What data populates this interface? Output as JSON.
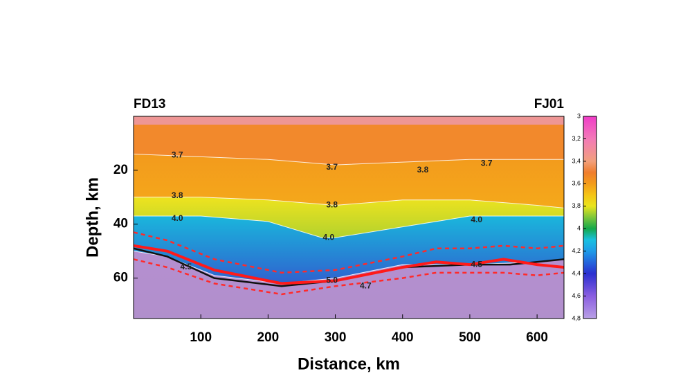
{
  "chart_data": {
    "type": "section",
    "left_label": "FD13",
    "right_label": "FJ01",
    "x_label": "Distance, km",
    "y_label": "Depth, km",
    "xlim": [
      0,
      640
    ],
    "ylim": [
      0,
      75
    ],
    "y_inverted": true,
    "xticks": [
      100,
      200,
      300,
      400,
      500,
      600
    ],
    "yticks": [
      20,
      40,
      60
    ],
    "background": "#f2892c",
    "contours": [
      {
        "x": [
          0,
          100,
          200,
          300,
          400,
          500,
          600,
          640
        ],
        "depth": [
          14,
          15,
          16,
          18,
          17,
          16,
          16,
          16
        ],
        "fill": [
          "#f39a1c",
          "#f6c718"
        ]
      },
      {
        "x": [
          0,
          100,
          200,
          300,
          400,
          500,
          600,
          640
        ],
        "depth": [
          30,
          30,
          31,
          33,
          31,
          31,
          33,
          34
        ],
        "fill": [
          "#eee31f",
          "#3db04a"
        ]
      },
      {
        "x": [
          0,
          100,
          200,
          280,
          300,
          400,
          500,
          600,
          640
        ],
        "depth": [
          37,
          37,
          39,
          45,
          45,
          41,
          37,
          37,
          37
        ],
        "fill": [
          "#1ab6dc",
          "#3a35c8"
        ]
      },
      {
        "x": [
          0,
          50,
          120,
          220,
          300,
          400,
          500,
          600,
          640
        ],
        "depth": [
          50,
          52,
          59,
          62,
          60,
          55,
          55,
          54,
          53
        ],
        "fill": [
          "#b58fd0",
          "#b18fcc"
        ]
      }
    ],
    "contour_color": "#ffffff",
    "contour_labels": [
      {
        "text": "3.7",
        "x": 65,
        "depth": 14.5
      },
      {
        "text": "3.7",
        "x": 295,
        "depth": 19
      },
      {
        "text": "3.8",
        "x": 430,
        "depth": 20
      },
      {
        "text": "3.7",
        "x": 525,
        "depth": 17.5
      },
      {
        "text": "3.8",
        "x": 65,
        "depth": 29.5
      },
      {
        "text": "3.8",
        "x": 295,
        "depth": 33
      },
      {
        "text": "4.0",
        "x": 65,
        "depth": 38
      },
      {
        "text": "4.0",
        "x": 290,
        "depth": 45
      },
      {
        "text": "4.0",
        "x": 510,
        "depth": 38.5
      },
      {
        "text": "4.5",
        "x": 78,
        "depth": 56
      },
      {
        "text": "5.0",
        "x": 295,
        "depth": 61
      },
      {
        "text": "4.7",
        "x": 345,
        "depth": 63
      },
      {
        "text": "4.5",
        "x": 510,
        "depth": 55
      }
    ],
    "lines": [
      {
        "color": "#111111",
        "dash": false,
        "width": 2.5,
        "x": [
          0,
          50,
          120,
          220,
          300,
          400,
          500,
          560,
          600,
          640
        ],
        "depth": [
          49,
          52,
          60,
          63,
          61,
          56,
          55,
          55,
          54,
          53
        ]
      },
      {
        "color": "#ff1a1a",
        "dash": false,
        "width": 4,
        "x": [
          0,
          50,
          120,
          220,
          300,
          400,
          450,
          500,
          550,
          600,
          640
        ],
        "depth": [
          48,
          50,
          57,
          62,
          61,
          56,
          54,
          55,
          53,
          55,
          56
        ]
      },
      {
        "color": "#ff2a2a",
        "dash": true,
        "width": 2.5,
        "x": [
          0,
          50,
          120,
          220,
          300,
          400,
          450,
          500,
          550,
          600,
          640
        ],
        "depth": [
          43,
          46,
          53,
          58,
          57,
          52,
          49,
          49,
          48,
          49,
          48
        ]
      },
      {
        "color": "#ff2a2a",
        "dash": true,
        "width": 2.5,
        "x": [
          0,
          50,
          120,
          220,
          300,
          400,
          450,
          500,
          550,
          600,
          640
        ],
        "depth": [
          53,
          56,
          62,
          66,
          63,
          60,
          58,
          58,
          58,
          59,
          58
        ]
      }
    ],
    "colorbar": {
      "lim": [
        3,
        4.8
      ],
      "ticks": [
        3,
        {
          "value": 3.2,
          "label": "3,2"
        },
        {
          "value": 3.4,
          "label": "3,4"
        },
        {
          "value": 3.6,
          "label": "3,6"
        },
        {
          "value": 3.8,
          "label": "3,8"
        },
        4,
        {
          "value": 4.2,
          "label": "4,2"
        },
        {
          "value": 4.4,
          "label": "4,4"
        },
        {
          "value": 4.6,
          "label": "4,6"
        },
        {
          "value": 4.8,
          "label": "4,8"
        }
      ],
      "stops": [
        3,
        3.2,
        3.4,
        3.5,
        3.6,
        3.7,
        3.8,
        3.9,
        4,
        4.1,
        4.2,
        4.4,
        4.6,
        4.8
      ],
      "colors": [
        "#f03cc8",
        "#f37ab8",
        "#f2a07c",
        "#f07d2d",
        "#f39c1a",
        "#f5c415",
        "#e9e41c",
        "#7cc63a",
        "#13a84a",
        "#18c0e0",
        "#1e9be8",
        "#2a2fd0",
        "#8a5ee0",
        "#b9a0e6"
      ]
    }
  }
}
